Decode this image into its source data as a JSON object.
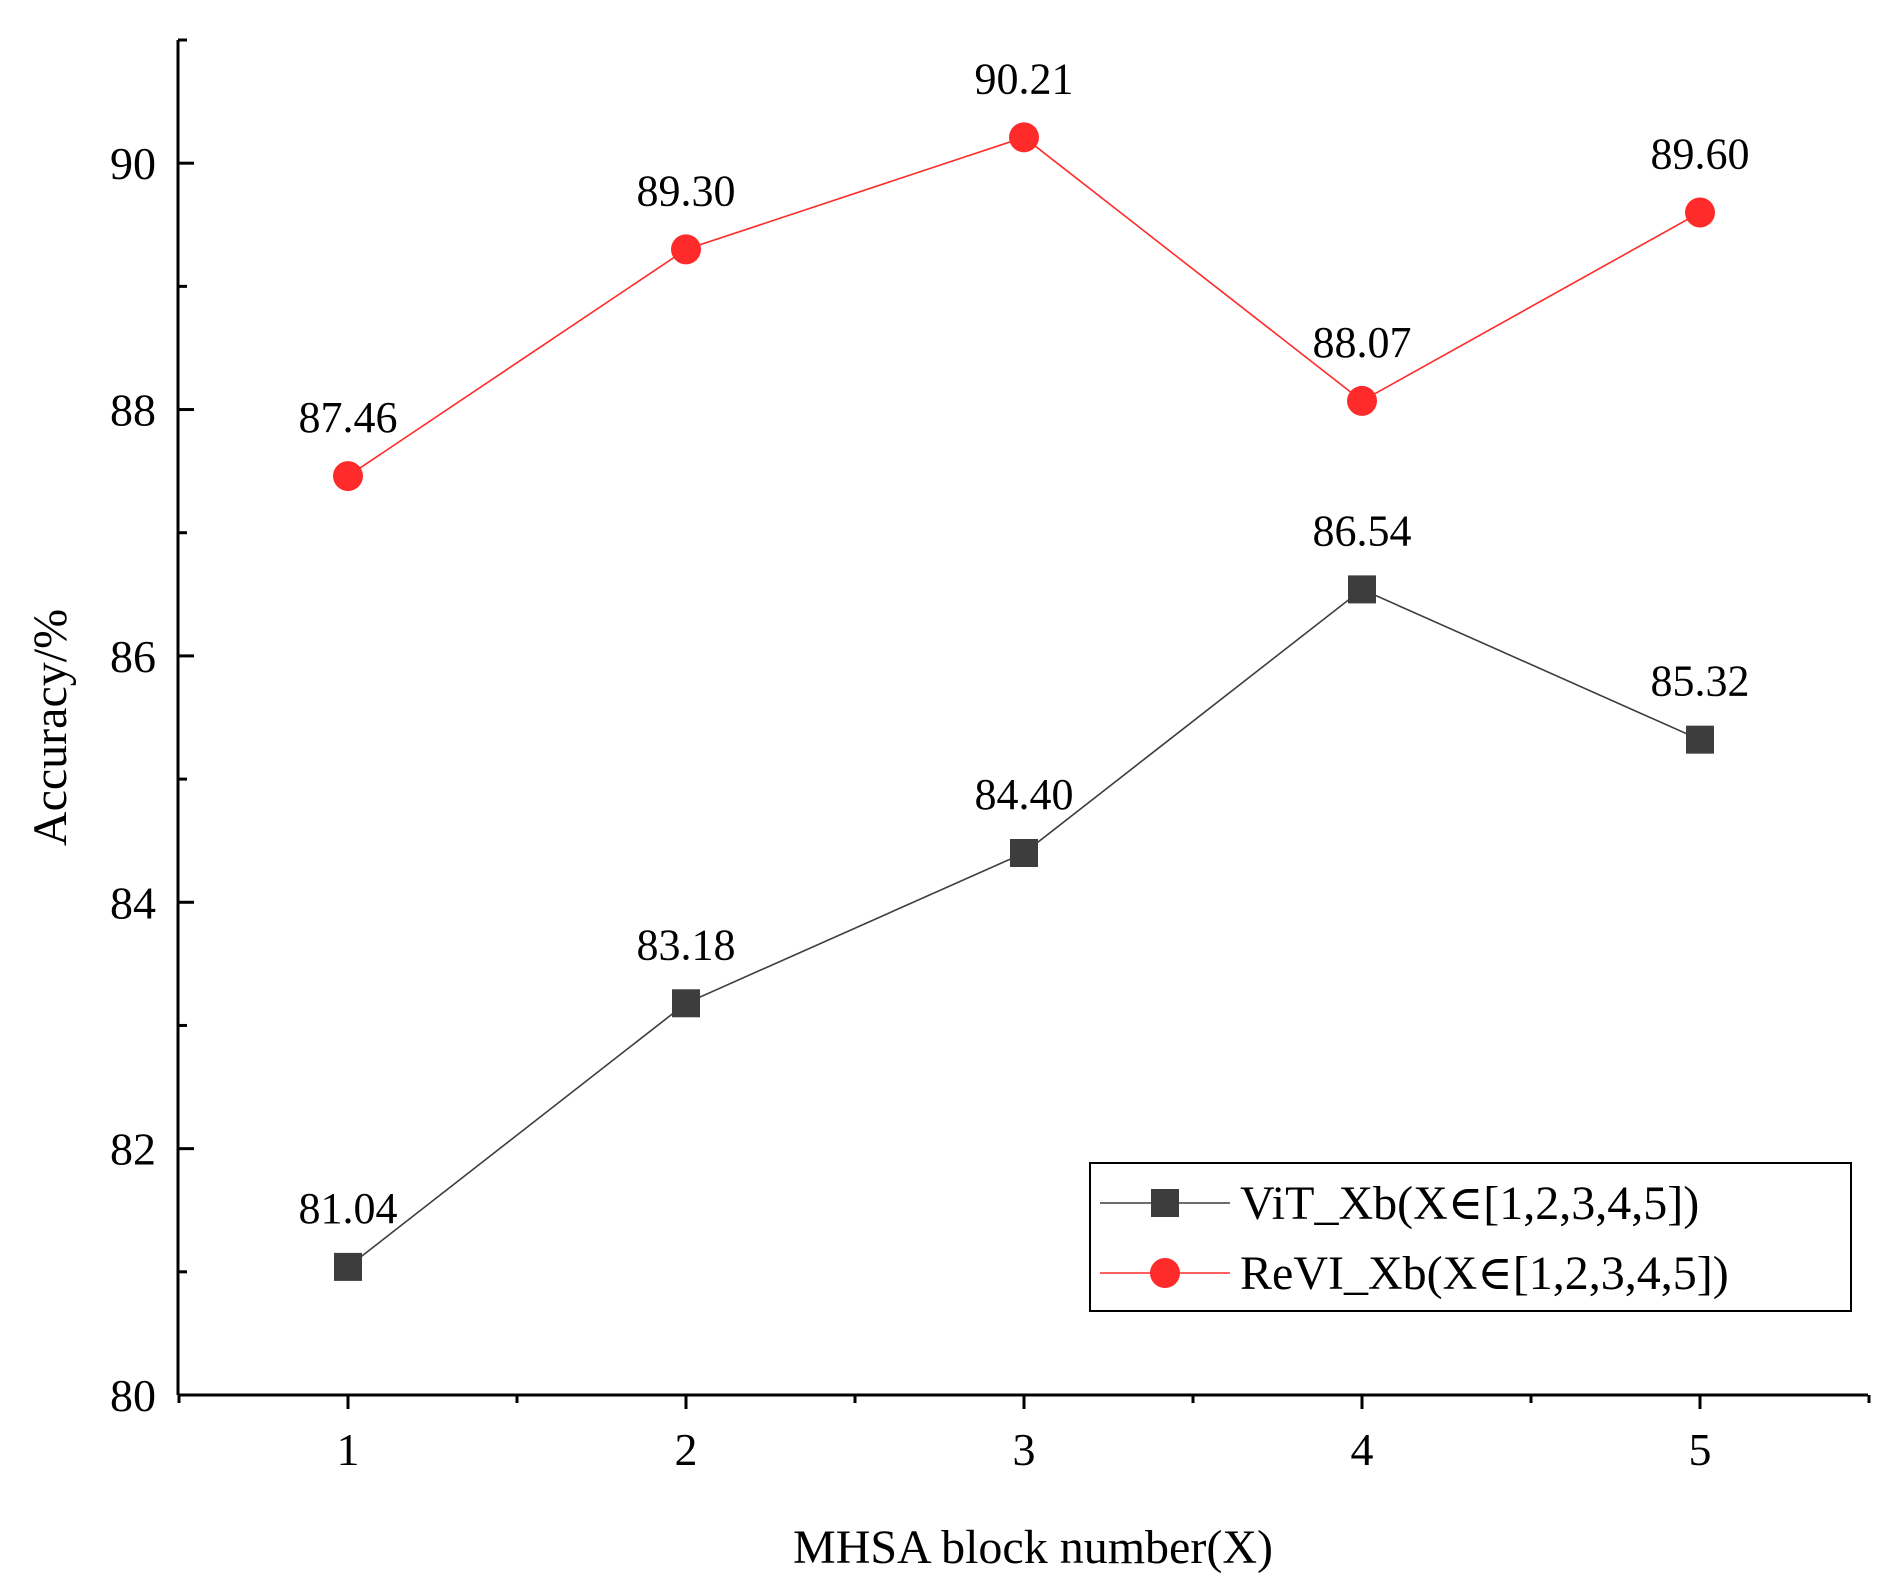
{
  "chart_data": {
    "type": "line",
    "title": "",
    "xlabel": "MHSA block number(X)",
    "ylabel": "Accuracy/%",
    "x": [
      1,
      2,
      3,
      4,
      5
    ],
    "xlim": [
      0.5,
      5.5
    ],
    "ylim": [
      80,
      91
    ],
    "yticks": [
      80,
      82,
      84,
      86,
      88,
      90
    ],
    "grid": false,
    "legend_position": "bottom-right",
    "series": [
      {
        "name": "ViT_Xb(X∈[1,2,3,4,5])",
        "marker": "square",
        "color": "#3d3d3d",
        "values": [
          81.04,
          83.18,
          84.4,
          86.54,
          85.32
        ],
        "labels": [
          "81.04",
          "83.18",
          "84.40",
          "86.54",
          "85.32"
        ]
      },
      {
        "name": "ReVI_Xb(X∈[1,2,3,4,5])",
        "marker": "circle",
        "color": "#ff2b2b",
        "values": [
          87.46,
          89.3,
          90.21,
          88.07,
          89.6
        ],
        "labels": [
          "87.46",
          "89.30",
          "90.21",
          "88.07",
          "89.60"
        ]
      }
    ]
  }
}
